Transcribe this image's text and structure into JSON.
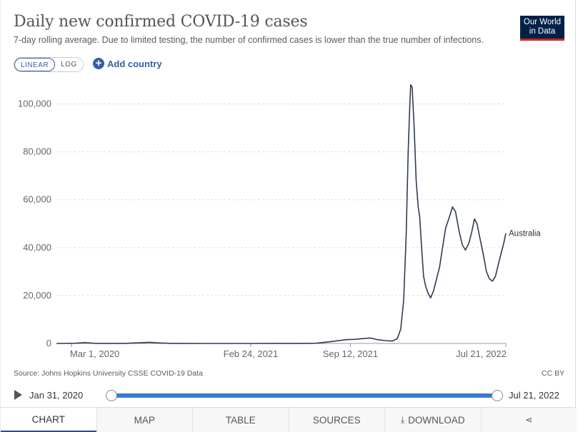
{
  "header": {
    "title": "Daily new confirmed COVID-19 cases",
    "subtitle": "7-day rolling average. Due to limited testing, the number of confirmed cases is lower than the true number of infections.",
    "logo_line1": "Our World",
    "logo_line2": "in Data"
  },
  "controls": {
    "linear_label": "LINEAR",
    "log_label": "LOG",
    "add_country_label": "Add country",
    "active_scale": "linear"
  },
  "chart_data": {
    "type": "line",
    "title": "Daily new confirmed COVID-19 cases",
    "ylim": [
      0,
      110000
    ],
    "y_ticks": [
      0,
      20000,
      40000,
      60000,
      80000,
      100000
    ],
    "y_tick_labels": [
      "0",
      "20,000",
      "40,000",
      "60,000",
      "80,000",
      "100,000"
    ],
    "x_ticks": [
      "2020-03-01",
      "2021-02-24",
      "2021-09-12",
      "2022-07-21"
    ],
    "x_tick_labels": [
      "Mar 1, 2020",
      "Feb 24, 2021",
      "Sep 12, 2021",
      "Jul 21, 2022"
    ],
    "x_range": [
      "2020-01-31",
      "2022-07-21"
    ],
    "grid": "horizontal dashed",
    "series": [
      {
        "name": "Australia",
        "color": "#2f3b52",
        "points": [
          [
            "2020-01-31",
            0
          ],
          [
            "2020-03-10",
            100
          ],
          [
            "2020-03-28",
            350
          ],
          [
            "2020-04-20",
            40
          ],
          [
            "2020-06-15",
            20
          ],
          [
            "2020-07-10",
            250
          ],
          [
            "2020-08-05",
            480
          ],
          [
            "2020-08-25",
            200
          ],
          [
            "2020-09-20",
            40
          ],
          [
            "2020-12-01",
            10
          ],
          [
            "2021-03-01",
            10
          ],
          [
            "2021-06-01",
            20
          ],
          [
            "2021-07-05",
            80
          ],
          [
            "2021-08-01",
            700
          ],
          [
            "2021-09-05",
            1600
          ],
          [
            "2021-09-20",
            1700
          ],
          [
            "2021-10-05",
            2000
          ],
          [
            "2021-10-22",
            2300
          ],
          [
            "2021-11-05",
            1600
          ],
          [
            "2021-11-20",
            1200
          ],
          [
            "2021-12-05",
            1000
          ],
          [
            "2021-12-15",
            2000
          ],
          [
            "2021-12-22",
            6000
          ],
          [
            "2021-12-28",
            18000
          ],
          [
            "2022-01-02",
            45000
          ],
          [
            "2022-01-06",
            80000
          ],
          [
            "2022-01-09",
            98000
          ],
          [
            "2022-01-11",
            108000
          ],
          [
            "2022-01-14",
            107000
          ],
          [
            "2022-01-18",
            90000
          ],
          [
            "2022-01-22",
            68000
          ],
          [
            "2022-01-26",
            57000
          ],
          [
            "2022-01-29",
            53000
          ],
          [
            "2022-02-02",
            40000
          ],
          [
            "2022-02-06",
            28000
          ],
          [
            "2022-02-10",
            24000
          ],
          [
            "2022-02-15",
            21000
          ],
          [
            "2022-02-20",
            19000
          ],
          [
            "2022-02-26",
            22000
          ],
          [
            "2022-03-04",
            27000
          ],
          [
            "2022-03-10",
            32000
          ],
          [
            "2022-03-16",
            40000
          ],
          [
            "2022-03-22",
            48000
          ],
          [
            "2022-03-30",
            53000
          ],
          [
            "2022-04-05",
            57000
          ],
          [
            "2022-04-11",
            55000
          ],
          [
            "2022-04-18",
            47000
          ],
          [
            "2022-04-25",
            41000
          ],
          [
            "2022-05-01",
            39000
          ],
          [
            "2022-05-08",
            42000
          ],
          [
            "2022-05-14",
            47000
          ],
          [
            "2022-05-19",
            52000
          ],
          [
            "2022-05-24",
            50000
          ],
          [
            "2022-05-30",
            44000
          ],
          [
            "2022-06-06",
            37000
          ],
          [
            "2022-06-12",
            30000
          ],
          [
            "2022-06-18",
            27000
          ],
          [
            "2022-06-24",
            26000
          ],
          [
            "2022-06-30",
            28000
          ],
          [
            "2022-07-06",
            33000
          ],
          [
            "2022-07-12",
            38000
          ],
          [
            "2022-07-17",
            42000
          ],
          [
            "2022-07-21",
            46000
          ]
        ]
      }
    ]
  },
  "footer": {
    "source": "Source: Johns Hopkins University CSSE COVID-19 Data",
    "license": "CC BY"
  },
  "timeline": {
    "start_label": "Jan 31, 2020",
    "end_label": "Jul 21, 2022",
    "start_fraction": 0,
    "end_fraction": 1
  },
  "tabs": [
    {
      "label": "CHART",
      "active": true
    },
    {
      "label": "MAP",
      "active": false
    },
    {
      "label": "TABLE",
      "active": false
    },
    {
      "label": "SOURCES",
      "active": false
    },
    {
      "label": "DOWNLOAD",
      "active": false,
      "icon": "download-icon"
    },
    {
      "label": "",
      "active": false,
      "icon": "share-icon"
    }
  ]
}
